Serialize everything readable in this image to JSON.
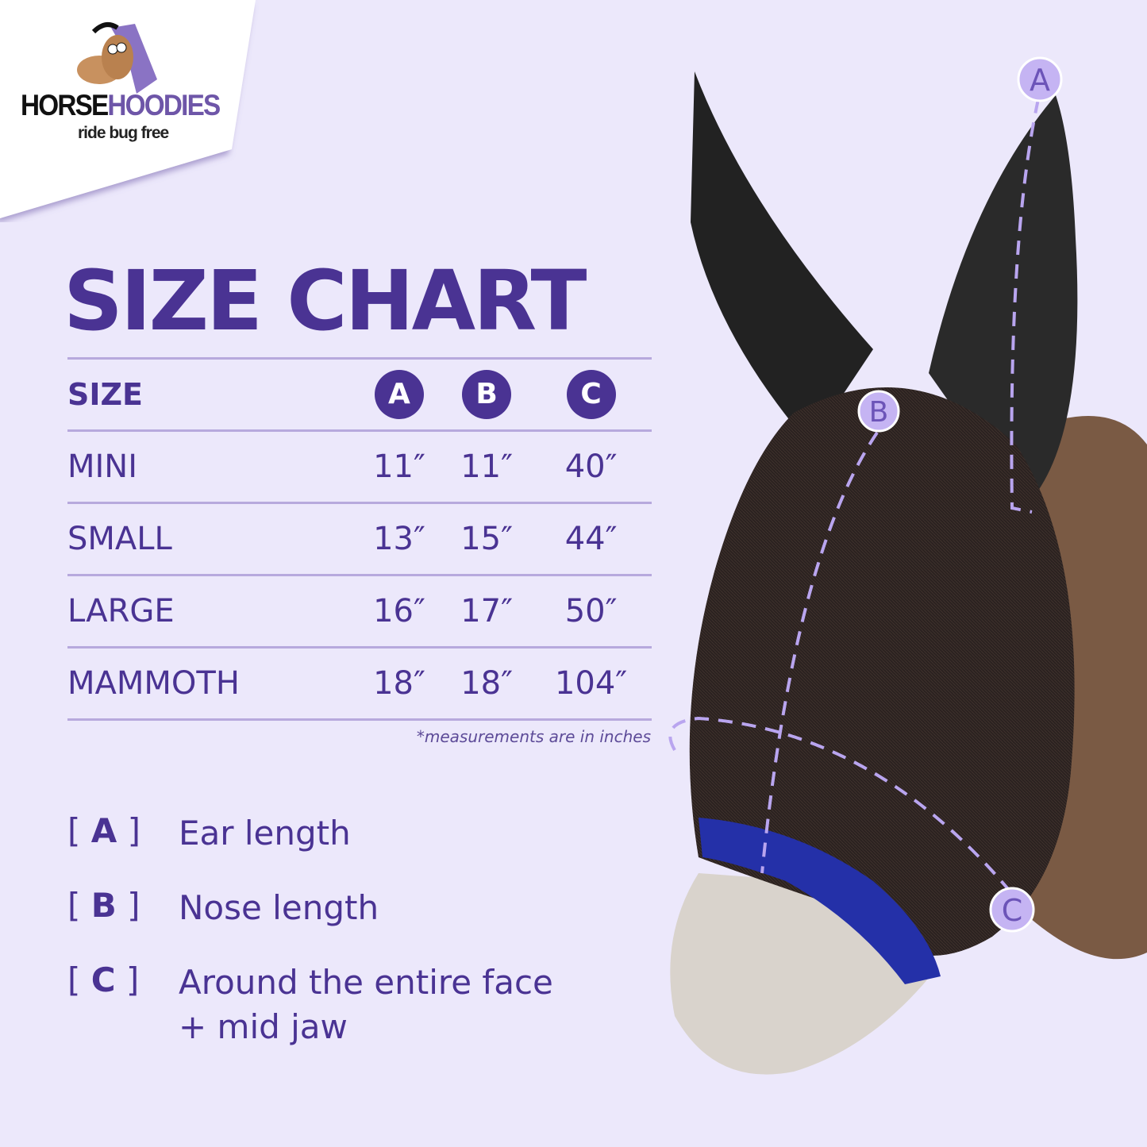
{
  "brand": {
    "name_part1": "HORSE",
    "name_part2": "HOODIES",
    "tagline": "ride bug free"
  },
  "title": "SIZE CHART",
  "table": {
    "headers": [
      "SIZE",
      "A",
      "B",
      "C"
    ],
    "rows": [
      {
        "size": "MINI",
        "a": "11″",
        "b": "11″",
        "c": "40″"
      },
      {
        "size": "SMALL",
        "a": "13″",
        "b": "15″",
        "c": "44″"
      },
      {
        "size": "LARGE",
        "a": "16″",
        "b": "17″",
        "c": "50″"
      },
      {
        "size": "MAMMOTH",
        "a": "18″",
        "b": "18″",
        "c": "104″"
      }
    ]
  },
  "note": "*measurements are in inches",
  "legend": [
    {
      "key": "A",
      "description": "Ear length"
    },
    {
      "key": "B",
      "description": "Nose length"
    },
    {
      "key": "C",
      "description": "Around the entire face",
      "description_line2": "+ mid jaw"
    }
  ],
  "markers": [
    "A",
    "B",
    "C"
  ],
  "colors": {
    "background": "#ece8fb",
    "primary": "#4a3393",
    "divider": "#b7a9dd",
    "marker": "#b9a5ef",
    "mask_trim": "#2430a8"
  }
}
